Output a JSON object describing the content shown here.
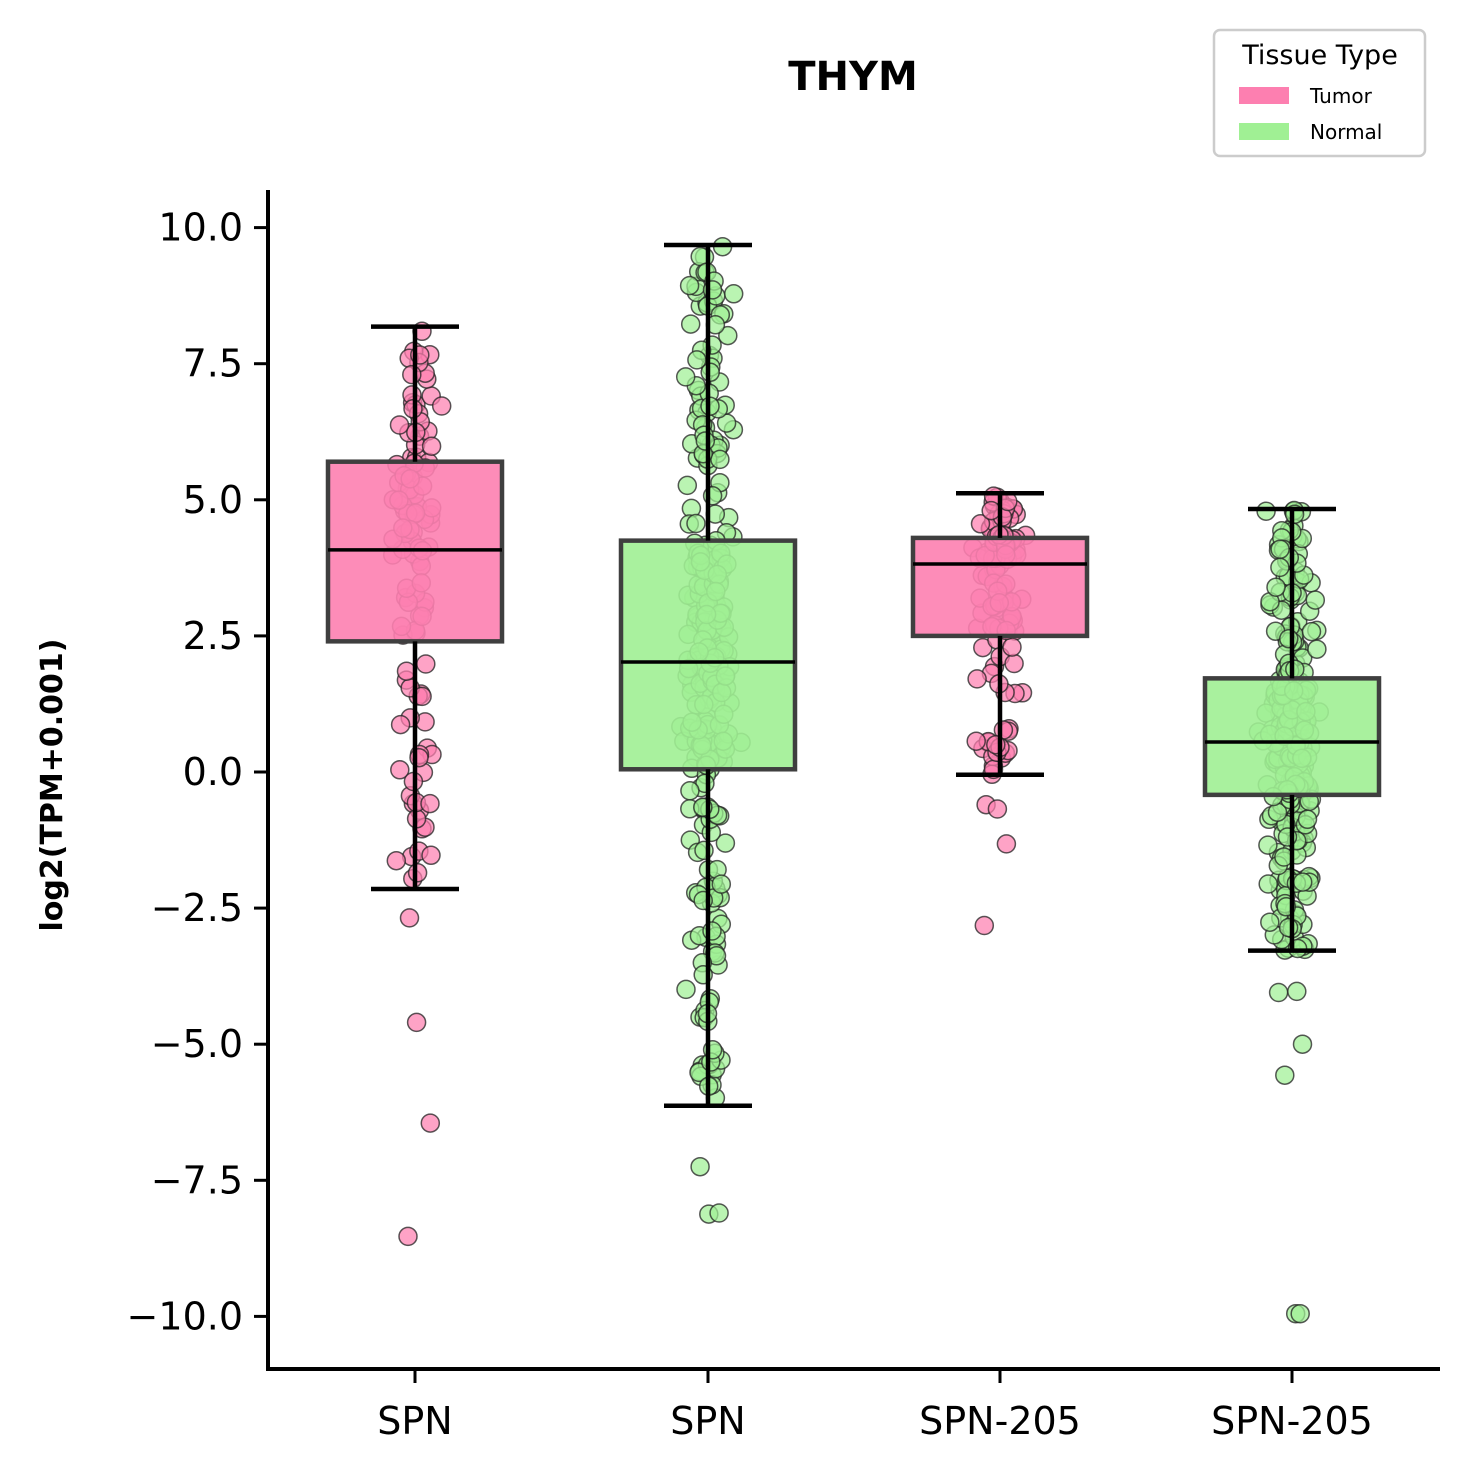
{
  "chart_data": {
    "type": "box",
    "title": "THYM",
    "ylabel": "log2(TPM+0.001)",
    "xlabel": "",
    "ylim": [
      -10.9,
      10.65
    ],
    "yticks": [
      10.0,
      7.5,
      5.0,
      2.5,
      0.0,
      -2.5,
      -5.0,
      -7.5,
      -10.0
    ],
    "ytick_labels": [
      "10.0",
      "7.5",
      "5.0",
      "2.5",
      "0.0",
      "−2.5",
      "−5.0",
      "−7.5",
      "−10.0"
    ],
    "categories": [
      "SPN",
      "SPN",
      "SPN-205",
      "SPN-205"
    ],
    "legend": {
      "title": "Tissue Type",
      "placement": "top-right",
      "entries": [
        {
          "label": "Tumor",
          "color": "#fd7fb0"
        },
        {
          "label": "Normal",
          "color": "#a0f094"
        }
      ]
    },
    "colors": {
      "Tumor": "#fd7fb0",
      "Normal": "#a0f094",
      "box_edge": "#3f3f3f",
      "whisker": "#000000"
    },
    "boxes": [
      {
        "label": "SPN",
        "group": "Tumor",
        "q1": 2.4,
        "median": 4.08,
        "q3": 5.7,
        "whisker_low": -2.15,
        "whisker_high": 8.18
      },
      {
        "label": "SPN",
        "group": "Normal",
        "q1": 0.05,
        "median": 2.02,
        "q3": 4.25,
        "whisker_low": -6.13,
        "whisker_high": 9.68
      },
      {
        "label": "SPN-205",
        "group": "Tumor",
        "q1": 2.5,
        "median": 3.82,
        "q3": 4.3,
        "whisker_low": -0.05,
        "whisker_high": 5.12
      },
      {
        "label": "SPN-205",
        "group": "Normal",
        "q1": -0.42,
        "median": 0.55,
        "q3": 1.72,
        "whisker_low": -3.28,
        "whisker_high": 4.83
      }
    ],
    "outliers": [
      {
        "box": 0,
        "values": [
          -2.68,
          -4.6,
          -6.45,
          -8.53
        ]
      },
      {
        "box": 1,
        "values": [
          -7.25,
          -8.12,
          -8.1
        ]
      },
      {
        "box": 2,
        "values": [
          -0.6,
          -0.68,
          -1.32,
          -2.82
        ]
      },
      {
        "box": 3,
        "values": [
          -4.05,
          -4.03,
          -5.0,
          -5.57,
          -9.95,
          -9.95
        ]
      }
    ]
  }
}
